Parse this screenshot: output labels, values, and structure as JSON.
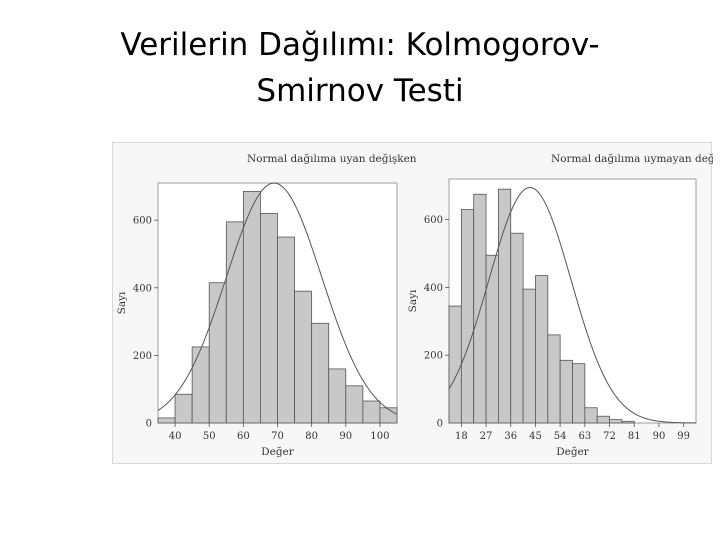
{
  "slide": {
    "title_line1": "Verilerin Dağılımı: Kolmogorov-",
    "title_line2": "Smirnov Testi"
  },
  "colors": {
    "bar": "#c8c8c8",
    "bar_stroke": "#555555",
    "curve": "#555555",
    "plot_bg": "#ffffff"
  },
  "chart_data": [
    {
      "type": "bar",
      "title": "Normal dağılıma uyan değişken",
      "xlabel": "Değer",
      "ylabel": "Sayı",
      "bin_start": 35,
      "bin_width": 5,
      "values": [
        15,
        85,
        225,
        415,
        595,
        685,
        620,
        550,
        390,
        295,
        160,
        110,
        65,
        45
      ],
      "xlim": [
        35,
        105
      ],
      "ylim": [
        0,
        710
      ],
      "xticks": [
        40,
        50,
        60,
        70,
        80,
        90,
        100
      ],
      "yticks": [
        200,
        400,
        600
      ],
      "normal_curve": {
        "mean": 69,
        "sd": 14,
        "peak": 710
      }
    },
    {
      "type": "bar",
      "title": "Normal dağılıma uymayan değişken",
      "xlabel": "Değer",
      "ylabel": "Sayı",
      "bin_start": 13.5,
      "bin_width": 4.5,
      "values": [
        345,
        630,
        675,
        495,
        690,
        560,
        395,
        435,
        260,
        185,
        175,
        45,
        20,
        10,
        5
      ],
      "xlim": [
        13.5,
        103.5
      ],
      "ylim": [
        0,
        720
      ],
      "xticks": [
        18,
        27,
        36,
        45,
        54,
        63,
        72,
        81,
        90,
        99
      ],
      "yticks": [
        200,
        400,
        600
      ],
      "normal_curve": {
        "mean": 43,
        "sd": 15,
        "peak": 695
      }
    }
  ]
}
